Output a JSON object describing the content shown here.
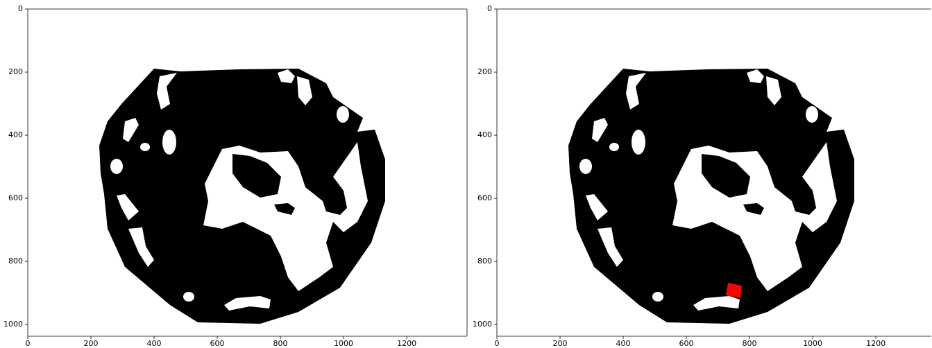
{
  "chart_data": [
    {
      "type": "image",
      "xlim": [
        0,
        1391
      ],
      "ylim": [
        1037,
        0
      ],
      "xticks": [
        0,
        200,
        400,
        600,
        800,
        1000,
        1200
      ],
      "yticks": [
        0,
        200,
        400,
        600,
        800,
        1000
      ]
    },
    {
      "type": "image",
      "xlim": [
        0,
        1391
      ],
      "ylim": [
        1037,
        0
      ],
      "xticks": [
        0,
        200,
        400,
        600,
        800,
        1000,
        1200
      ],
      "yticks": [
        0,
        200,
        400,
        600,
        800,
        1000
      ]
    }
  ]
}
